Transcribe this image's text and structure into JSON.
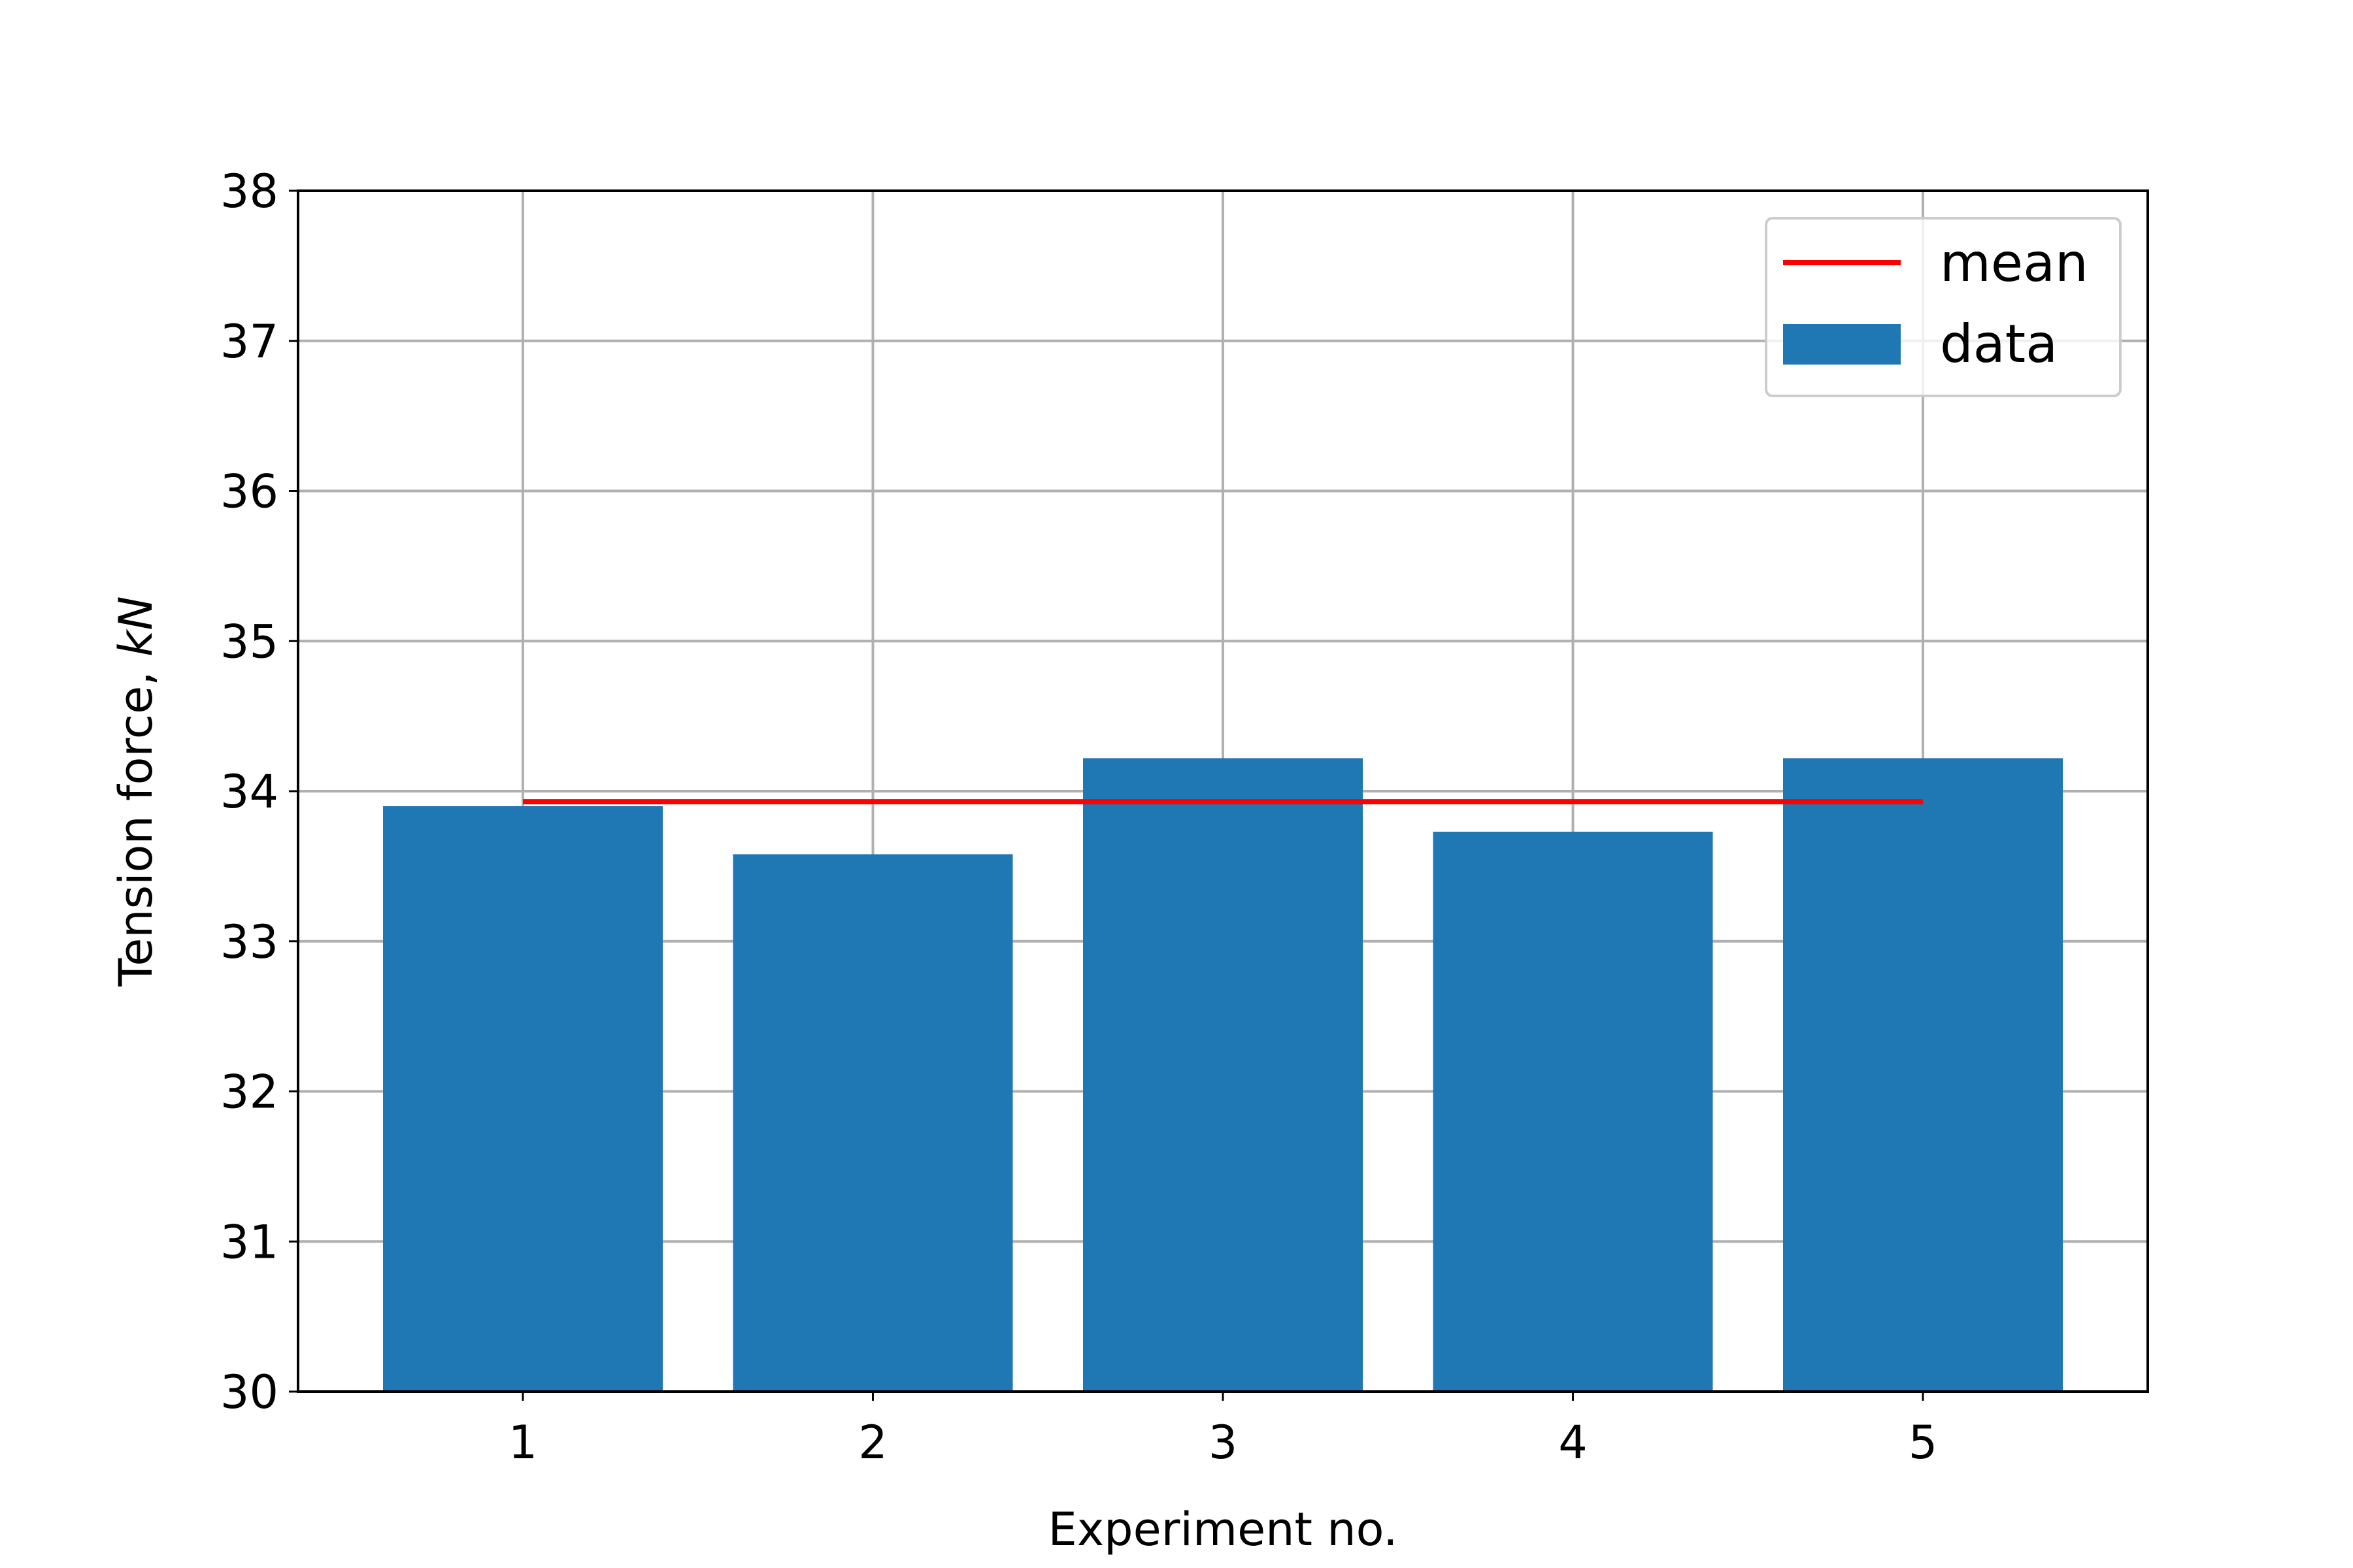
{
  "chart_data": {
    "type": "bar",
    "title": "",
    "xlabel": "Experiment no.",
    "ylabel_text": "Tension force, ",
    "ylabel_unit": "kN",
    "categories": [
      "1",
      "2",
      "3",
      "4",
      "5"
    ],
    "series": [
      {
        "name": "data",
        "type": "bar",
        "values": [
          33.9,
          33.58,
          34.22,
          33.73,
          34.22
        ],
        "color": "#1f77b4"
      },
      {
        "name": "mean",
        "type": "line",
        "value": 33.93,
        "x_range": [
          "1",
          "5"
        ],
        "color": "#ff0000"
      }
    ],
    "ylim": [
      30,
      38
    ],
    "yticks": [
      "30",
      "31",
      "32",
      "33",
      "34",
      "35",
      "36",
      "37",
      "38"
    ],
    "grid": true,
    "legend_position": "upper right",
    "legend": [
      {
        "label": "mean",
        "kind": "line",
        "color": "#ff0000"
      },
      {
        "label": "data",
        "kind": "bar",
        "color": "#1f77b4"
      }
    ]
  }
}
